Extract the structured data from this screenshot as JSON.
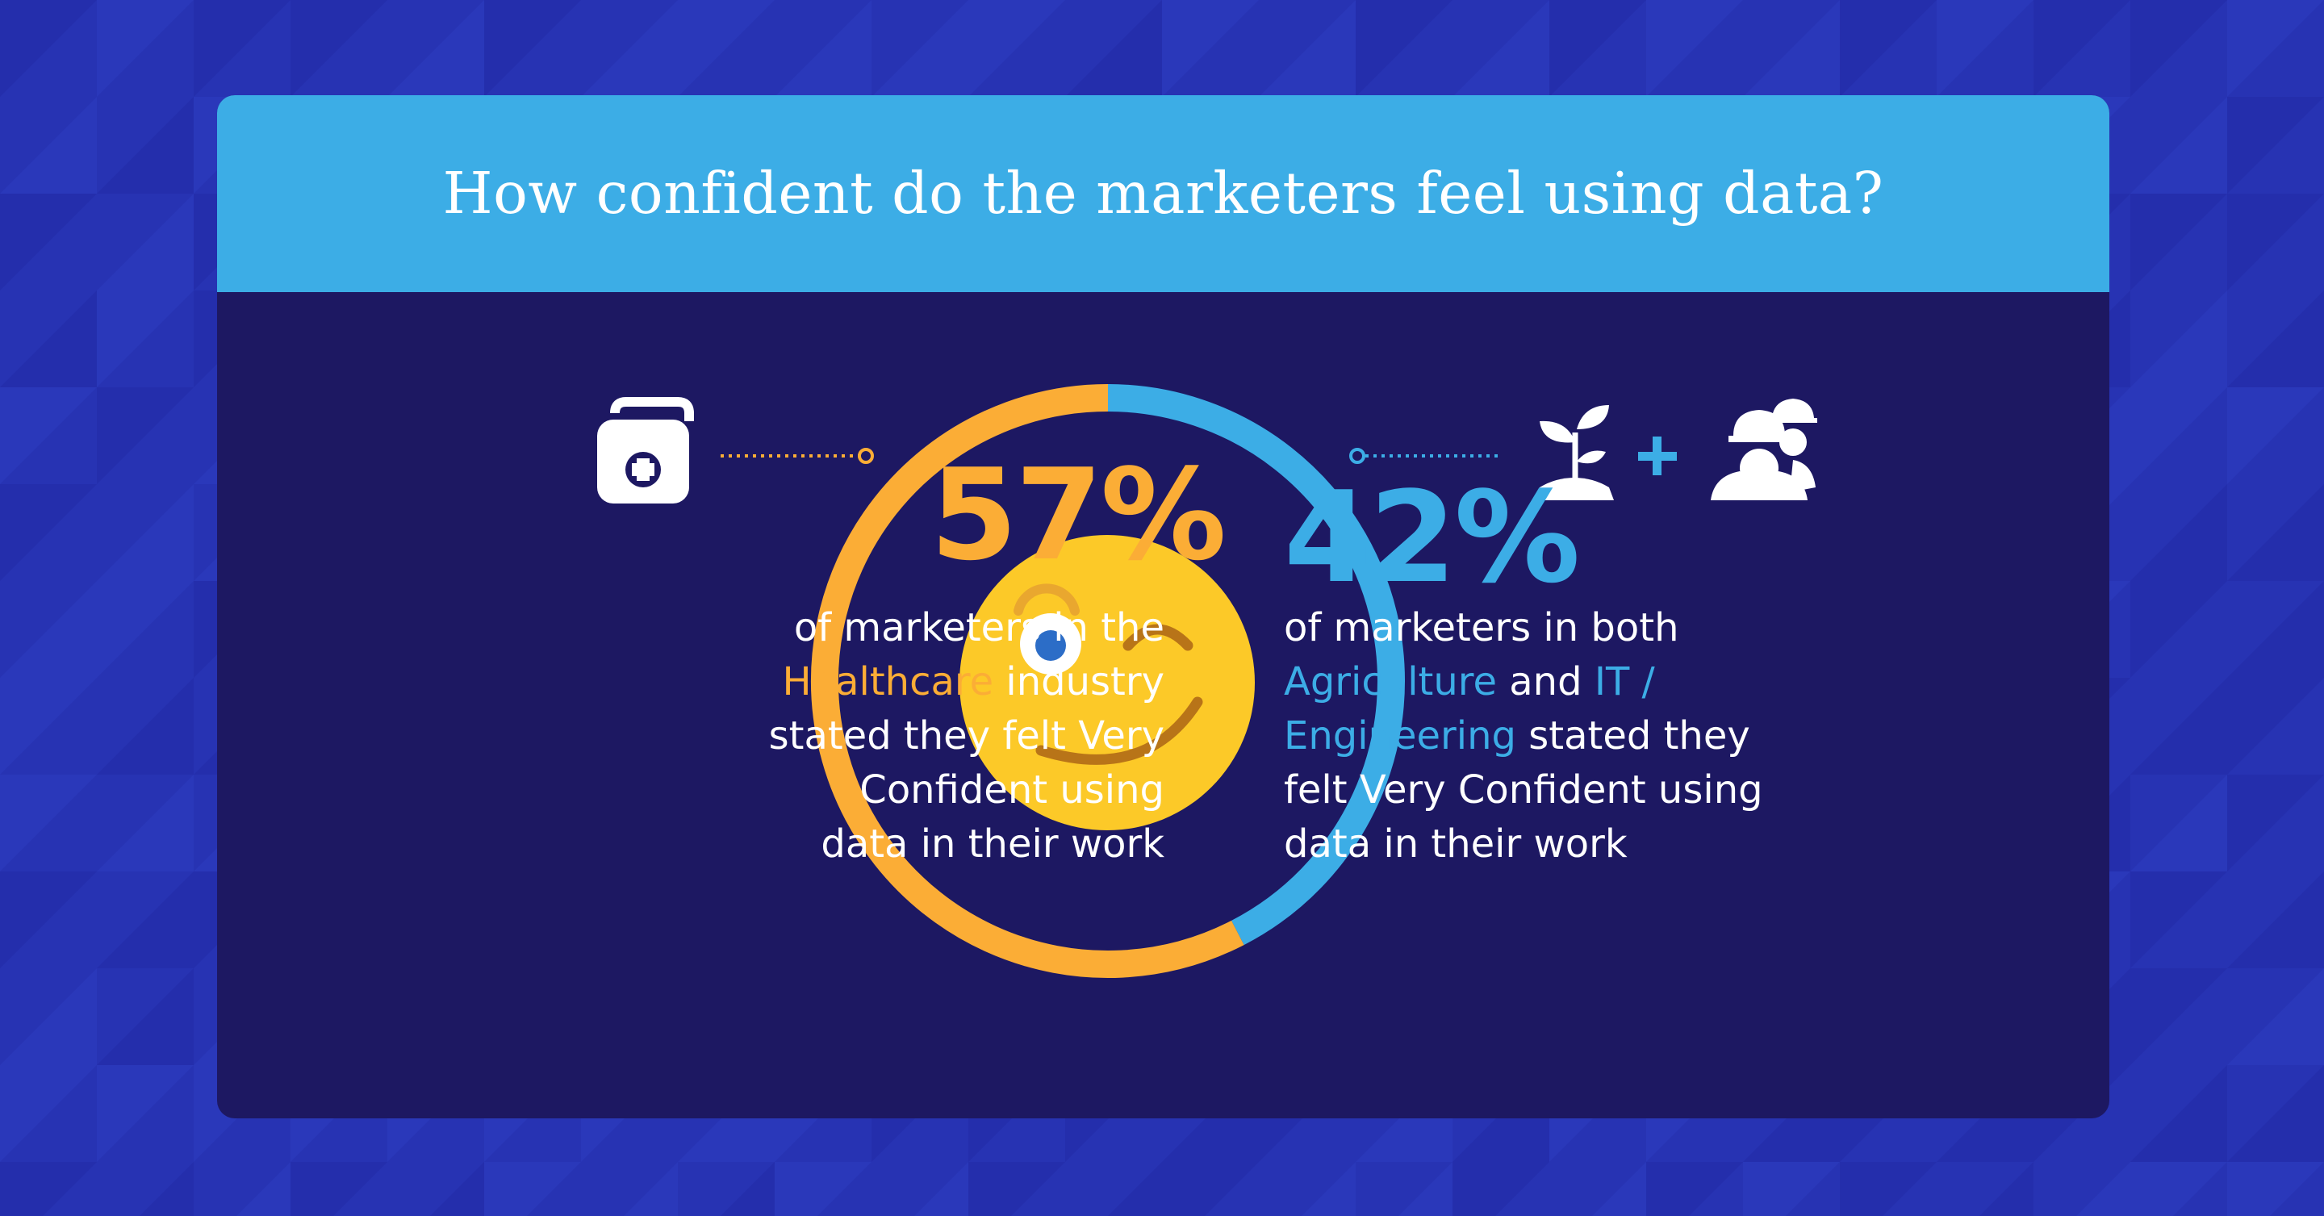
{
  "title": "How confident do the marketers feel using data?",
  "left": {
    "percent": "57%",
    "desc_line1": "of marketers in the",
    "industry": "Healthcare",
    "desc_line2_rest": " industry",
    "desc_line3": "stated they felt Very",
    "desc_line4": "Confident using",
    "desc_line5": "data in their work",
    "icon": "medical-kit-icon"
  },
  "right": {
    "percent": "42%",
    "desc_line1": "of marketers in both",
    "industry1": "Agriculture",
    "and_word": " and ",
    "industry2_part1": "IT /",
    "industry2_part2": "Engineering",
    "desc_line3_rest": " stated they",
    "desc_line4": "felt Very Confident using",
    "desc_line5": "data in their work",
    "icons": [
      "plant-sprout-icon",
      "plus-icon",
      "engineers-icon"
    ]
  },
  "colors": {
    "orange": "#fbad36",
    "blue": "#3cade6",
    "card": "#1d1862",
    "background": "#2733b3",
    "smiley": "#fcc928"
  },
  "center_icon": "winking-smiley-icon",
  "chart_data": {
    "type": "pie",
    "variant": "donut",
    "series": [
      {
        "name": "Healthcare",
        "values": [
          57
        ],
        "color": "#fbad36"
      },
      {
        "name": "Agriculture and IT / Engineering",
        "values": [
          42
        ],
        "color": "#3cade6"
      }
    ]
  }
}
